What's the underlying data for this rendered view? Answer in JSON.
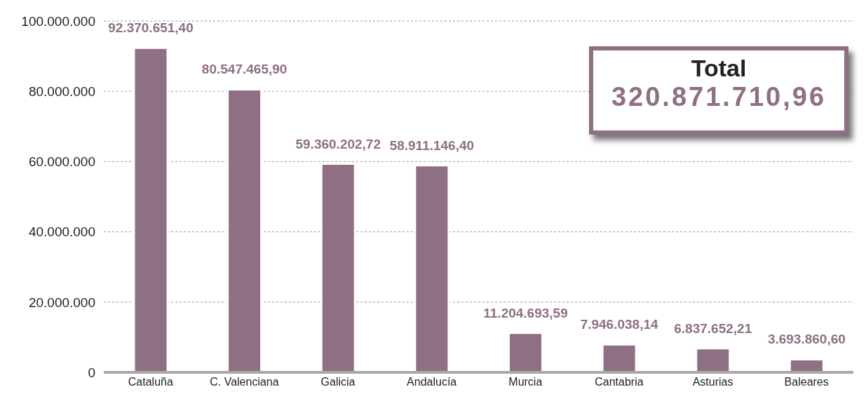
{
  "chart_data": {
    "type": "bar",
    "categories": [
      "Cataluña",
      "C. Valenciana",
      "Galicia",
      "Andalucía",
      "Murcia",
      "Cantabria",
      "Asturias",
      "Baleares"
    ],
    "values": [
      92370651.4,
      80547465.9,
      59360202.72,
      58911146.4,
      11204693.59,
      7946038.14,
      6837652.21,
      3693860.6
    ],
    "value_labels": [
      "92.370.651,40",
      "80.547.465,90",
      "59.360.202,72",
      "58.911.146,40",
      "11.204.693,59",
      "7.946.038,14",
      "6.837.652,21",
      "3.693.860,60"
    ],
    "color": "#8e6f84",
    "ylim": [
      0,
      100000000
    ],
    "yticks": [
      0,
      {
        "value": 20000000,
        "label": "20.000.000"
      },
      {
        "value": 40000000,
        "label": "40.000.000"
      },
      {
        "value": 60000000,
        "label": "60.000.000"
      },
      {
        "value": 80000000,
        "label": "80.000.000"
      },
      {
        "value": 100000000,
        "label": "100.000.000"
      }
    ],
    "grid": "y",
    "annotations": [
      "Total",
      "320.871.710,96"
    ]
  }
}
